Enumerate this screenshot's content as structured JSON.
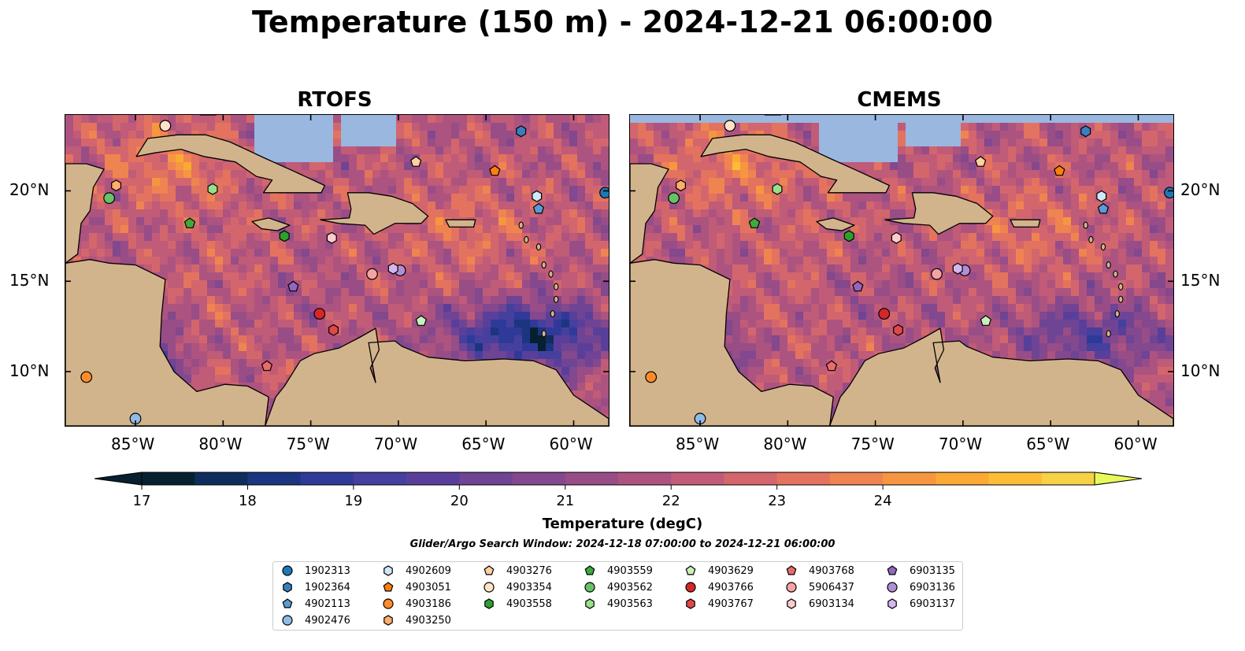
{
  "title": "Temperature (150 m) - 2024-12-21 06:00:00",
  "panels": [
    {
      "title": "RTOFS"
    },
    {
      "title": "CMEMS"
    }
  ],
  "map": {
    "lon_range": [
      -89,
      -58
    ],
    "lat_range": [
      7,
      24.2
    ],
    "lon_ticks": [
      {
        "value": -85,
        "label": "85°W"
      },
      {
        "value": -80,
        "label": "80°W"
      },
      {
        "value": -75,
        "label": "75°W"
      },
      {
        "value": -70,
        "label": "70°W"
      },
      {
        "value": -65,
        "label": "65°W"
      },
      {
        "value": -60,
        "label": "60°W"
      }
    ],
    "lat_ticks": [
      {
        "value": 10,
        "label": "10°N"
      },
      {
        "value": 15,
        "label": "15°N"
      },
      {
        "value": 20,
        "label": "20°N"
      }
    ],
    "land_color": "#d2b48c",
    "shelf_color": "#9ab7e0"
  },
  "colorbar": {
    "label": "Temperature (degC)",
    "ticks": [
      "17",
      "18",
      "19",
      "20",
      "21",
      "22",
      "23",
      "24"
    ],
    "colors": [
      "#07202f",
      "#0f2d5c",
      "#1c3580",
      "#2f3a98",
      "#45409d",
      "#5a3f9a",
      "#6f4494",
      "#83488d",
      "#984d87",
      "#ad5380",
      "#c05b78",
      "#d3666d",
      "#e3735f",
      "#ef8450",
      "#f69640",
      "#fba935",
      "#fbbd36",
      "#f7d244"
    ],
    "extend_low": "#07202f",
    "extend_high": "#e8fa5b"
  },
  "search_window": "Glider/Argo Search Window: 2024-12-18 07:00:00 to 2024-12-21 06:00:00",
  "legend": [
    {
      "id": "1902313",
      "color": "#1f77b4",
      "marker": "circle",
      "lon": -58.2,
      "lat": 19.9
    },
    {
      "id": "1902364",
      "color": "#3a7ebf",
      "marker": "hexagon",
      "lon": -63.0,
      "lat": 23.3
    },
    {
      "id": "4902113",
      "color": "#5a9bd5",
      "marker": "pentagon",
      "lon": -62.0,
      "lat": 19.0
    },
    {
      "id": "4902476",
      "color": "#8fbbe6",
      "marker": "circle",
      "lon": -85.0,
      "lat": 7.4
    },
    {
      "id": "4902609",
      "color": "#cfe7f7",
      "marker": "hexagon",
      "lon": -62.1,
      "lat": 19.7
    },
    {
      "id": "4903051",
      "color": "#ff7f0e",
      "marker": "pentagon",
      "lon": -64.5,
      "lat": 21.1
    },
    {
      "id": "4903186",
      "color": "#ff8c2a",
      "marker": "circle",
      "lon": -87.8,
      "lat": 9.7
    },
    {
      "id": "4903250",
      "color": "#ffae6b",
      "marker": "hexagon",
      "lon": -86.1,
      "lat": 20.3
    },
    {
      "id": "4903276",
      "color": "#ffd0a0",
      "marker": "pentagon",
      "lon": -69.0,
      "lat": 21.6
    },
    {
      "id": "4903354",
      "color": "#ffe3c8",
      "marker": "circle",
      "lon": -83.3,
      "lat": 23.6
    },
    {
      "id": "4903558",
      "color": "#2ca02c",
      "marker": "hexagon",
      "lon": -76.5,
      "lat": 17.5
    },
    {
      "id": "4903559",
      "color": "#3daa3d",
      "marker": "pentagon",
      "lon": -81.9,
      "lat": 18.2
    },
    {
      "id": "4903562",
      "color": "#66c266",
      "marker": "circle",
      "lon": -86.5,
      "lat": 19.6
    },
    {
      "id": "4903563",
      "color": "#98df8a",
      "marker": "hexagon",
      "lon": -80.6,
      "lat": 20.1
    },
    {
      "id": "4903629",
      "color": "#c8f0bc",
      "marker": "pentagon",
      "lon": -68.7,
      "lat": 12.8
    },
    {
      "id": "4903766",
      "color": "#d62728",
      "marker": "circle",
      "lon": -74.5,
      "lat": 13.2
    },
    {
      "id": "4903767",
      "color": "#e04848",
      "marker": "hexagon",
      "lon": -73.7,
      "lat": 12.3
    },
    {
      "id": "4903768",
      "color": "#ea6b6b",
      "marker": "pentagon",
      "lon": -77.5,
      "lat": 10.3
    },
    {
      "id": "5906437",
      "color": "#f4a3a3",
      "marker": "circle",
      "lon": -71.5,
      "lat": 15.4
    },
    {
      "id": "6903134",
      "color": "#fccccc",
      "marker": "hexagon",
      "lon": -73.8,
      "lat": 17.4
    },
    {
      "id": "6903135",
      "color": "#9467bd",
      "marker": "pentagon",
      "lon": -76.0,
      "lat": 14.7
    },
    {
      "id": "6903136",
      "color": "#b28ed6",
      "marker": "circle",
      "lon": -69.9,
      "lat": 15.6
    },
    {
      "id": "6903137",
      "color": "#d4b7ee",
      "marker": "hexagon",
      "lon": -70.3,
      "lat": 15.7
    }
  ]
}
